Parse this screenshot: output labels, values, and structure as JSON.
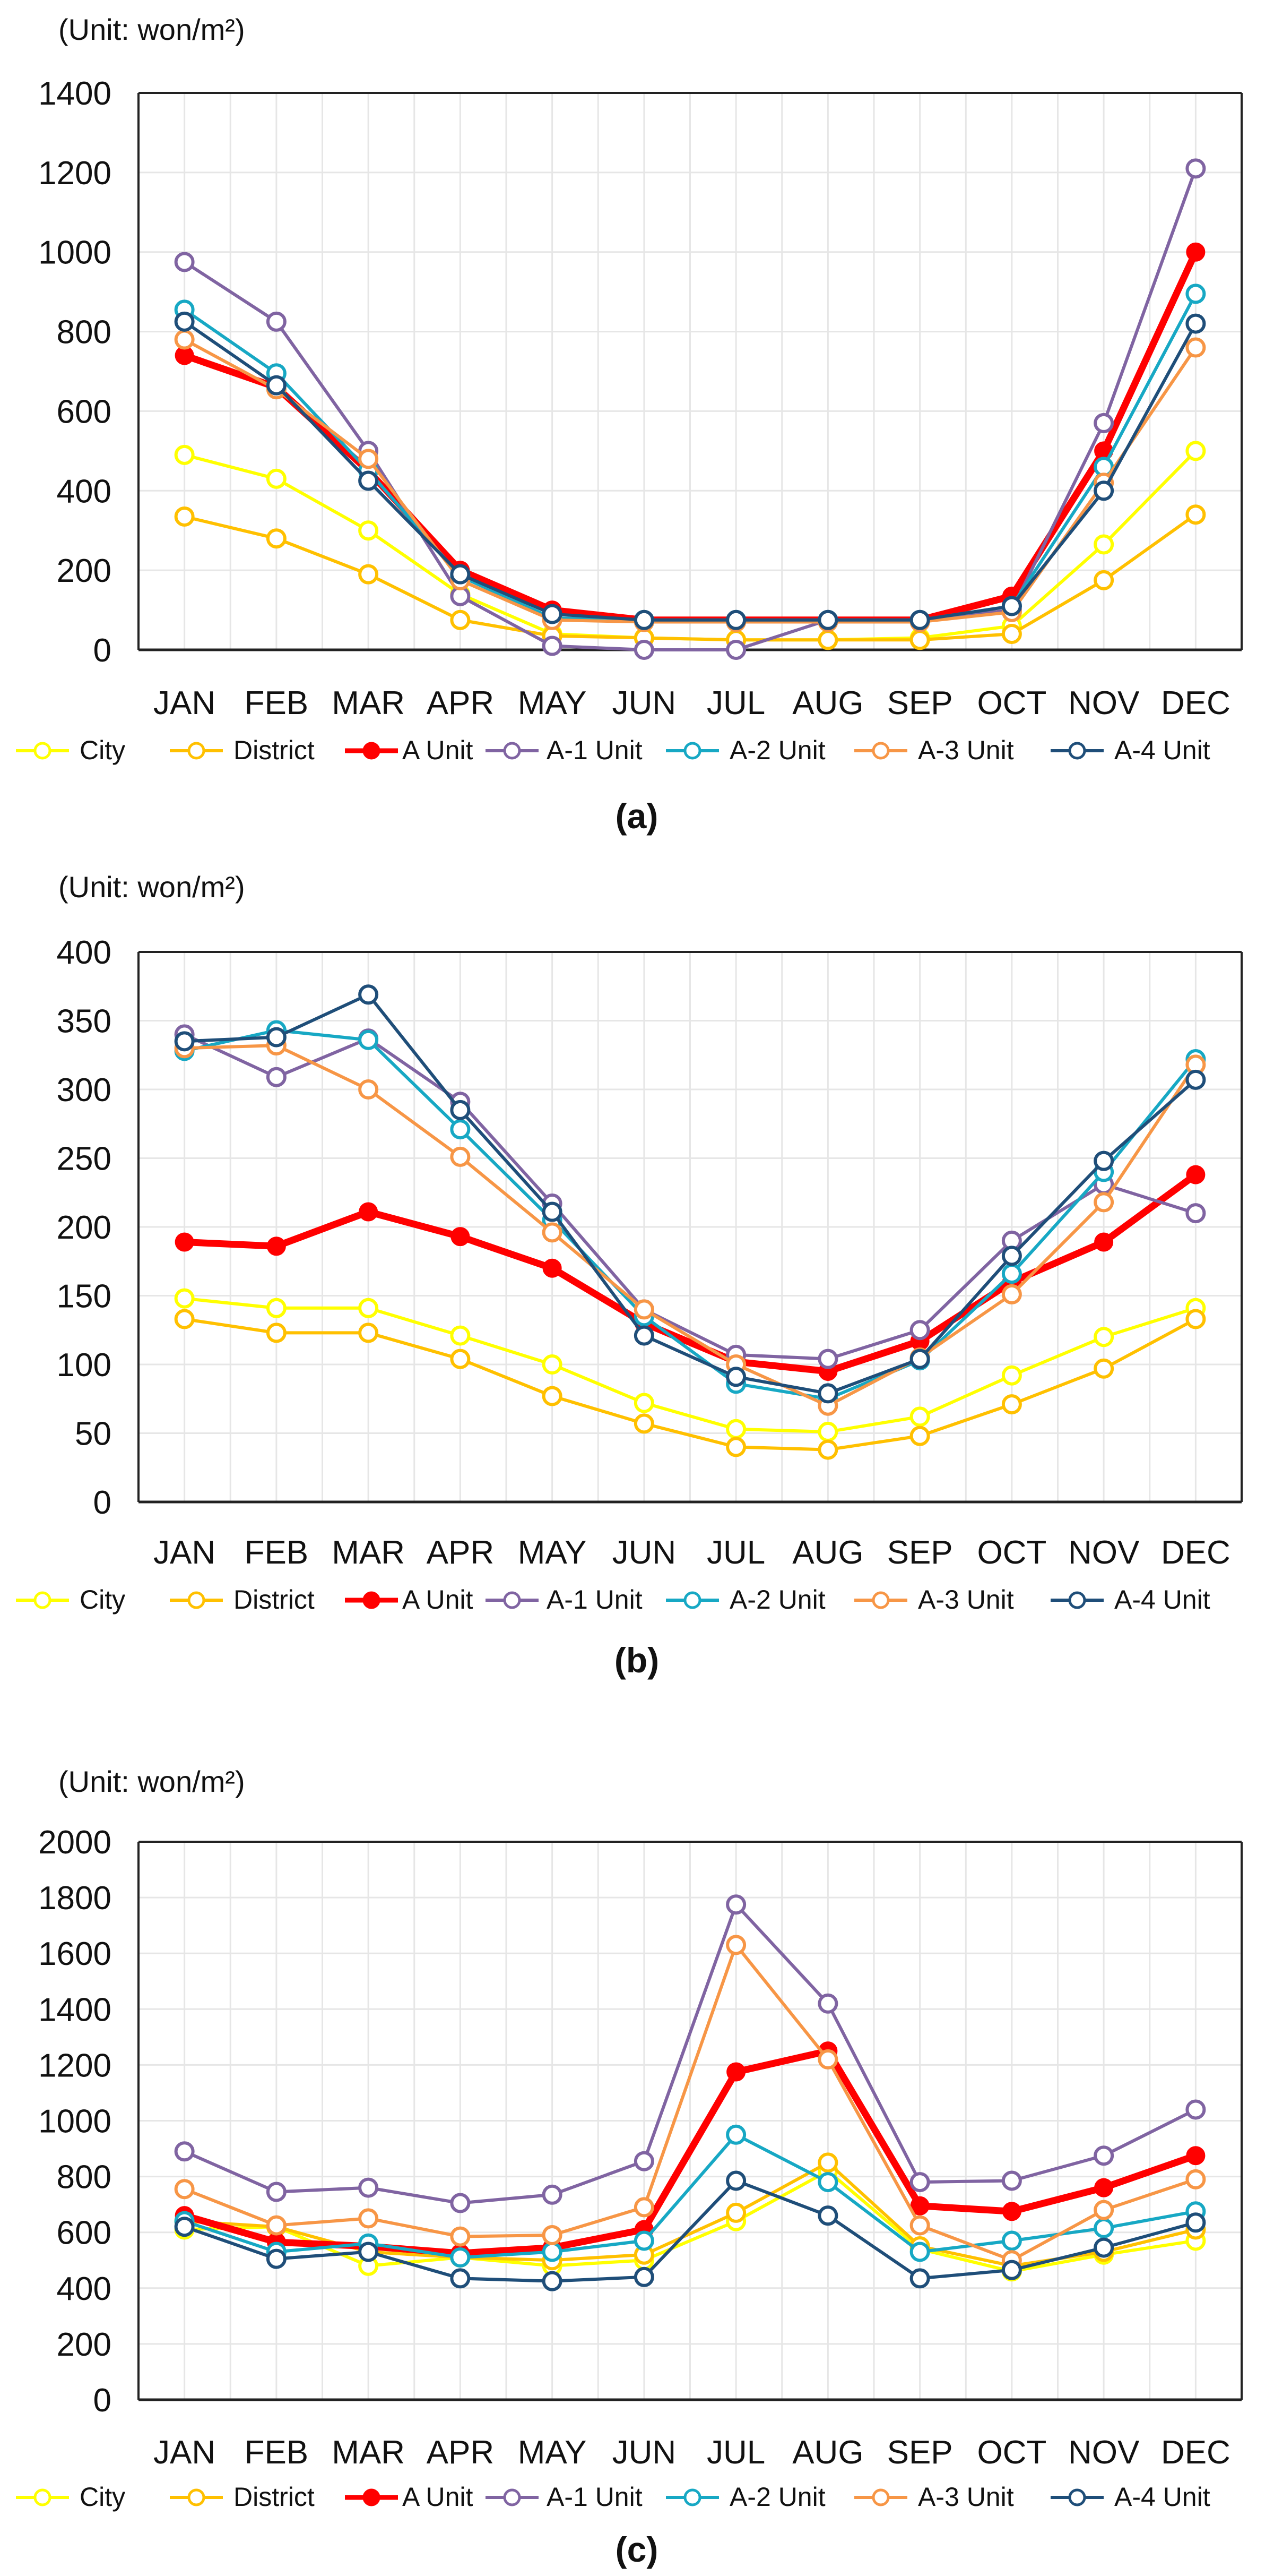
{
  "colors": {
    "City": "#FFFF00",
    "District": "#FFC000",
    "A Unit": "#FF0000",
    "A-1 Unit": "#8064A2",
    "A-2 Unit": "#17A8C4",
    "A-3 Unit": "#F79646",
    "A-4 Unit": "#1F4E79"
  },
  "chart_data": [
    {
      "type": "line",
      "panel_label": "(a)",
      "unit_label": "(Unit: won/m²)",
      "categories": [
        "JAN",
        "FEB",
        "MAR",
        "APR",
        "MAY",
        "JUN",
        "JUL",
        "AUG",
        "SEP",
        "OCT",
        "NOV",
        "DEC"
      ],
      "ylim": [
        0,
        1400
      ],
      "yticks": [
        "0",
        "200",
        "400",
        "600",
        "800",
        "1000",
        "1200",
        "1400"
      ],
      "grid": true,
      "legend": "bottom",
      "series": [
        {
          "name": "City",
          "values": [
            490,
            430,
            300,
            140,
            40,
            30,
            25,
            25,
            30,
            60,
            265,
            500
          ]
        },
        {
          "name": "District",
          "values": [
            335,
            280,
            190,
            75,
            35,
            30,
            25,
            25,
            25,
            40,
            175,
            340
          ]
        },
        {
          "name": "A Unit",
          "values": [
            740,
            660,
            450,
            200,
            100,
            75,
            75,
            75,
            75,
            135,
            500,
            1000
          ]
        },
        {
          "name": "A-1 Unit",
          "values": [
            975,
            825,
            500,
            135,
            10,
            0,
            0,
            75,
            75,
            100,
            570,
            1210
          ]
        },
        {
          "name": "A-2 Unit",
          "values": [
            855,
            695,
            450,
            185,
            80,
            75,
            75,
            75,
            75,
            110,
            460,
            895
          ]
        },
        {
          "name": "A-3 Unit",
          "values": [
            780,
            655,
            480,
            175,
            75,
            70,
            70,
            70,
            70,
            95,
            420,
            760
          ]
        },
        {
          "name": "A-4 Unit",
          "values": [
            825,
            665,
            425,
            190,
            90,
            75,
            75,
            75,
            75,
            110,
            400,
            820
          ]
        }
      ]
    },
    {
      "type": "line",
      "panel_label": "(b)",
      "unit_label": "(Unit: won/m²)",
      "categories": [
        "JAN",
        "FEB",
        "MAR",
        "APR",
        "MAY",
        "JUN",
        "JUL",
        "AUG",
        "SEP",
        "OCT",
        "NOV",
        "DEC"
      ],
      "ylim": [
        0,
        400
      ],
      "yticks": [
        "0",
        "50",
        "100",
        "150",
        "200",
        "250",
        "300",
        "350",
        "400"
      ],
      "grid": true,
      "legend": "bottom",
      "series": [
        {
          "name": "City",
          "values": [
            148,
            141,
            141,
            121,
            100,
            72,
            53,
            51,
            62,
            92,
            120,
            141
          ]
        },
        {
          "name": "District",
          "values": [
            133,
            123,
            123,
            104,
            77,
            57,
            40,
            38,
            48,
            71,
            97,
            133
          ]
        },
        {
          "name": "A Unit",
          "values": [
            189,
            186,
            211,
            193,
            170,
            130,
            102,
            95,
            117,
            160,
            189,
            238
          ]
        },
        {
          "name": "A-1 Unit",
          "values": [
            340,
            309,
            337,
            291,
            217,
            140,
            107,
            104,
            125,
            190,
            231,
            210
          ]
        },
        {
          "name": "A-2 Unit",
          "values": [
            328,
            343,
            336,
            271,
            205,
            135,
            86,
            75,
            103,
            166,
            240,
            322
          ]
        },
        {
          "name": "A-3 Unit",
          "values": [
            330,
            332,
            300,
            251,
            196,
            140,
            100,
            70,
            105,
            151,
            218,
            318
          ]
        },
        {
          "name": "A-4 Unit",
          "values": [
            335,
            338,
            369,
            285,
            211,
            121,
            91,
            79,
            104,
            179,
            248,
            307
          ]
        }
      ]
    },
    {
      "type": "line",
      "panel_label": "(c)",
      "unit_label": "(Unit: won/m²)",
      "categories": [
        "JAN",
        "FEB",
        "MAR",
        "APR",
        "MAY",
        "JUN",
        "JUL",
        "AUG",
        "SEP",
        "OCT",
        "NOV",
        "DEC"
      ],
      "ylim": [
        0,
        2000
      ],
      "yticks": [
        "0",
        "200",
        "400",
        "600",
        "800",
        "1000",
        "1200",
        "1400",
        "1600",
        "1800",
        "2000"
      ],
      "grid": true,
      "legend": "bottom",
      "series": [
        {
          "name": "City",
          "values": [
            610,
            620,
            480,
            510,
            480,
            500,
            640,
            820,
            540,
            460,
            520,
            570
          ]
        },
        {
          "name": "District",
          "values": [
            640,
            620,
            530,
            510,
            500,
            520,
            670,
            850,
            550,
            480,
            530,
            610
          ]
        },
        {
          "name": "A Unit",
          "values": [
            660,
            565,
            550,
            525,
            545,
            610,
            1175,
            1250,
            695,
            675,
            760,
            875
          ]
        },
        {
          "name": "A-1 Unit",
          "values": [
            890,
            745,
            760,
            705,
            735,
            855,
            1775,
            1420,
            780,
            785,
            875,
            1040
          ]
        },
        {
          "name": "A-2 Unit",
          "values": [
            640,
            530,
            560,
            510,
            530,
            570,
            950,
            780,
            530,
            570,
            615,
            675
          ]
        },
        {
          "name": "A-3 Unit",
          "values": [
            755,
            625,
            650,
            585,
            590,
            690,
            1630,
            1220,
            625,
            500,
            680,
            790
          ]
        },
        {
          "name": "A-4 Unit",
          "values": [
            620,
            505,
            530,
            435,
            425,
            440,
            785,
            660,
            435,
            465,
            545,
            635
          ]
        }
      ]
    }
  ]
}
